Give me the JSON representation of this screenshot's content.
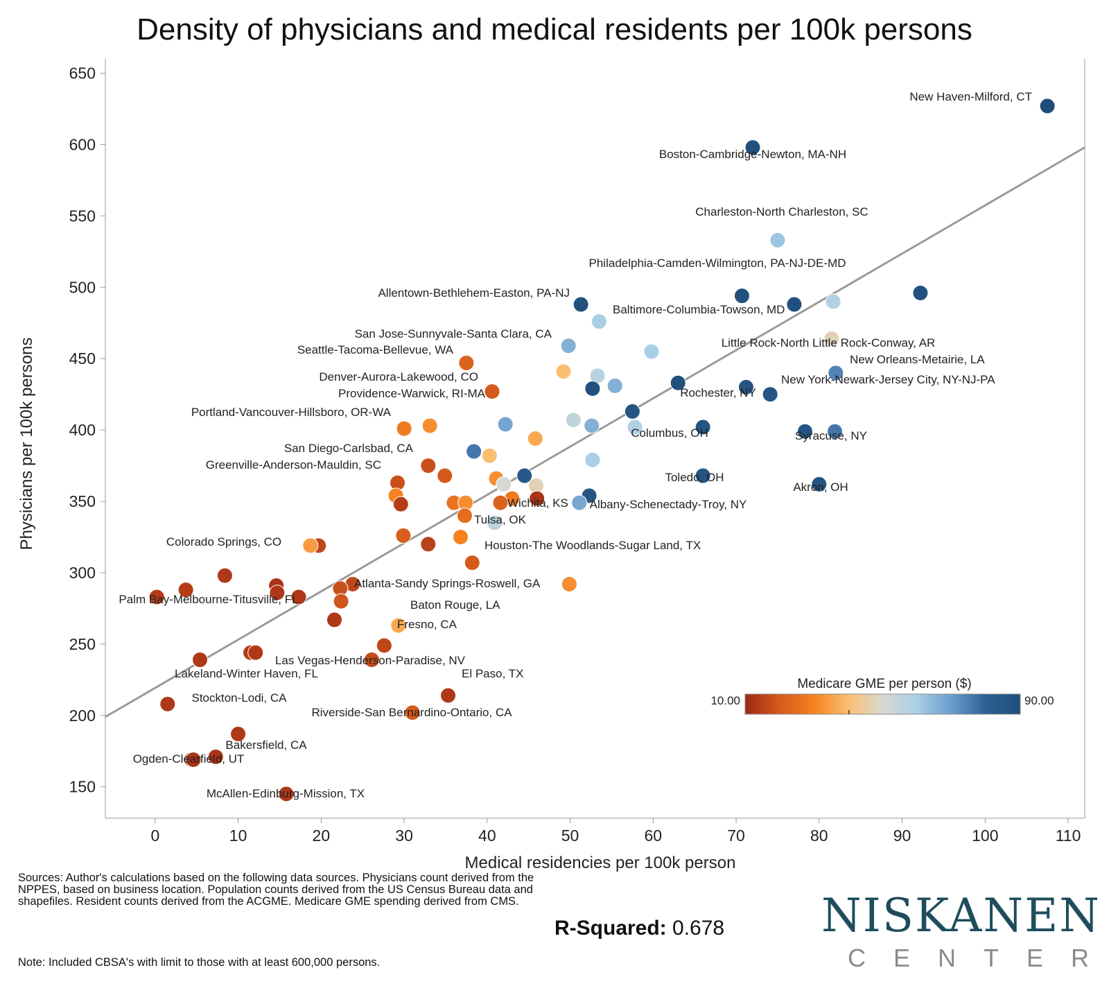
{
  "chart_data": {
    "type": "scatter",
    "title": "Density of physicians and medical residents per 100k persons",
    "xlabel": "Medical residencies per 100k person",
    "ylabel": "Physicians per 100k persons",
    "xlim": [
      -6,
      112
    ],
    "ylim": [
      128,
      660
    ],
    "x_ticks": [
      0,
      10,
      20,
      30,
      40,
      50,
      60,
      70,
      80,
      90,
      100,
      110
    ],
    "y_ticks": [
      150,
      200,
      250,
      300,
      350,
      400,
      450,
      500,
      550,
      600,
      650
    ],
    "trendline": {
      "x0": -6,
      "y0": 199,
      "x1": 112,
      "y1": 598
    },
    "color_legend": {
      "title": "Medicare GME per person ($)",
      "min_label": "10.00",
      "max_label": "90.00",
      "min": 10,
      "max": 90,
      "colors": [
        "#9e2a16",
        "#d45a1c",
        "#f5821f",
        "#fbbf72",
        "#d8d8d2",
        "#a9cfe6",
        "#6b9ccc",
        "#2d5f93",
        "#1f4e79"
      ]
    },
    "r_squared_label": "R-Squared:",
    "r_squared": "0.678",
    "points": [
      {
        "x": 107.5,
        "y": 627,
        "gme": 90,
        "label": "New Haven-Milford, CT"
      },
      {
        "x": 72,
        "y": 598,
        "gme": 88
      },
      {
        "x": 75,
        "y": 533,
        "gme": 62,
        "label": "Charleston-North Charleston, SC"
      },
      {
        "x": 92.2,
        "y": 496,
        "gme": 88
      },
      {
        "x": 70.7,
        "y": 494,
        "gme": 88
      },
      {
        "x": 77,
        "y": 488,
        "gme": 88
      },
      {
        "x": 81.7,
        "y": 490,
        "gme": 58
      },
      {
        "x": 51.3,
        "y": 488,
        "gme": 88,
        "label": "Allentown-Bethlehem-Easton, PA-NJ"
      },
      {
        "x": 53.5,
        "y": 476,
        "gme": 60,
        "label": "Baltimore-Columbia-Towson, MD"
      },
      {
        "x": 81.5,
        "y": 464,
        "gme": 47
      },
      {
        "x": 49.8,
        "y": 459,
        "gme": 66,
        "label": "San Jose-Sunnyvale-Santa Clara, CA"
      },
      {
        "x": 59.8,
        "y": 455,
        "gme": 60
      },
      {
        "x": 37.5,
        "y": 447,
        "gme": 22,
        "label": "Seattle-Tacoma-Bellevue, WA"
      },
      {
        "x": 82,
        "y": 440,
        "gme": 74,
        "label": "New Orleans-Metairie, LA"
      },
      {
        "x": 49.2,
        "y": 441,
        "gme": 40
      },
      {
        "x": 53.3,
        "y": 438,
        "gme": 57
      },
      {
        "x": 52.7,
        "y": 429,
        "gme": 88
      },
      {
        "x": 55.4,
        "y": 431,
        "gme": 66
      },
      {
        "x": 63,
        "y": 433,
        "gme": 88
      },
      {
        "x": 71.2,
        "y": 430,
        "gme": 86
      },
      {
        "x": 74.1,
        "y": 425,
        "gme": 86,
        "label": "New York-Newark-Jersey City, NY-NJ-PA"
      },
      {
        "x": 40.6,
        "y": 427,
        "gme": 20,
        "label": "Denver-Aurora-Lakewood, CO"
      },
      {
        "x": 57.5,
        "y": 413,
        "gme": 86
      },
      {
        "x": 50.4,
        "y": 407,
        "gme": 55
      },
      {
        "x": 42.2,
        "y": 404,
        "gme": 68
      },
      {
        "x": 52.6,
        "y": 403,
        "gme": 66
      },
      {
        "x": 57.8,
        "y": 402,
        "gme": 58
      },
      {
        "x": 66,
        "y": 402,
        "gme": 86
      },
      {
        "x": 78.3,
        "y": 399,
        "gme": 86
      },
      {
        "x": 81.9,
        "y": 399,
        "gme": 76
      },
      {
        "x": 30,
        "y": 401,
        "gme": 28,
        "label": "Portland-Vancouver-Hillsboro, OR-WA"
      },
      {
        "x": 33.1,
        "y": 403,
        "gme": 32
      },
      {
        "x": 45.8,
        "y": 394,
        "gme": 36
      },
      {
        "x": 38.4,
        "y": 385,
        "gme": 76
      },
      {
        "x": 40.3,
        "y": 382,
        "gme": 40
      },
      {
        "x": 52.7,
        "y": 379,
        "gme": 60
      },
      {
        "x": 32.9,
        "y": 375,
        "gme": 18,
        "label": "San Diego-Carlsbad, CA"
      },
      {
        "x": 34.9,
        "y": 368,
        "gme": 20
      },
      {
        "x": 44.5,
        "y": 368,
        "gme": 84
      },
      {
        "x": 66,
        "y": 368,
        "gme": 86
      },
      {
        "x": 41.1,
        "y": 366,
        "gme": 32
      },
      {
        "x": 42,
        "y": 362,
        "gme": 50
      },
      {
        "x": 45.9,
        "y": 361,
        "gme": 47
      },
      {
        "x": 29.2,
        "y": 363,
        "gme": 18,
        "label": "Greenville-Anderson-Mauldin, SC"
      },
      {
        "x": 80,
        "y": 362,
        "gme": 86
      },
      {
        "x": 29,
        "y": 354,
        "gme": 30
      },
      {
        "x": 52.3,
        "y": 354,
        "gme": 86
      },
      {
        "x": 46,
        "y": 352,
        "gme": 12
      },
      {
        "x": 43,
        "y": 352,
        "gme": 28
      },
      {
        "x": 36,
        "y": 349,
        "gme": 26
      },
      {
        "x": 37.4,
        "y": 349,
        "gme": 32
      },
      {
        "x": 41.6,
        "y": 349,
        "gme": 22
      },
      {
        "x": 51.1,
        "y": 349,
        "gme": 68
      },
      {
        "x": 29.6,
        "y": 348,
        "gme": 14
      },
      {
        "x": 37.3,
        "y": 340,
        "gme": 25
      },
      {
        "x": 40.9,
        "y": 335,
        "gme": 56,
        "label": "Wichita, KS"
      },
      {
        "x": 29.9,
        "y": 326,
        "gme": 21
      },
      {
        "x": 36.8,
        "y": 325,
        "gme": 30,
        "label": "Tulsa, OK"
      },
      {
        "x": 32.9,
        "y": 320,
        "gme": 15
      },
      {
        "x": 19.7,
        "y": 319,
        "gme": 16
      },
      {
        "x": 18.7,
        "y": 319,
        "gme": 34
      },
      {
        "x": 38.2,
        "y": 307,
        "gme": 20,
        "label": "Houston-The Woodlands-Sugar Land, TX"
      },
      {
        "x": 8.4,
        "y": 298,
        "gme": 13
      },
      {
        "x": 49.9,
        "y": 292,
        "gme": 32
      },
      {
        "x": 23.8,
        "y": 292,
        "gme": 16
      },
      {
        "x": 14.6,
        "y": 291,
        "gme": 12
      },
      {
        "x": 22.3,
        "y": 289,
        "gme": 18
      },
      {
        "x": 3.7,
        "y": 288,
        "gme": 14
      },
      {
        "x": 14.7,
        "y": 286,
        "gme": 13
      },
      {
        "x": 0.2,
        "y": 283,
        "gme": 14
      },
      {
        "x": 17.3,
        "y": 283,
        "gme": 13
      },
      {
        "x": 22.4,
        "y": 280,
        "gme": 19,
        "label": "Atlanta-Sandy Springs-Roswell, GA"
      },
      {
        "x": 21.6,
        "y": 267,
        "gme": 13
      },
      {
        "x": 29.3,
        "y": 263,
        "gme": 36,
        "label": "Baton Rouge, LA"
      },
      {
        "x": 27.6,
        "y": 249,
        "gme": 16,
        "label": "Fresno, CA"
      },
      {
        "x": 11.5,
        "y": 244,
        "gme": 14
      },
      {
        "x": 12.1,
        "y": 244,
        "gme": 13
      },
      {
        "x": 5.4,
        "y": 239,
        "gme": 13
      },
      {
        "x": 26.1,
        "y": 239,
        "gme": 17
      },
      {
        "x": 35.3,
        "y": 214,
        "gme": 13,
        "label": "El Paso, TX"
      },
      {
        "x": 1.5,
        "y": 208,
        "gme": 13,
        "label": "Lakeland-Winter Haven, FL"
      },
      {
        "x": 31,
        "y": 202,
        "gme": 20
      },
      {
        "x": 10,
        "y": 187,
        "gme": 13
      },
      {
        "x": 7.3,
        "y": 171,
        "gme": 12
      },
      {
        "x": 4.4,
        "y": 169,
        "gme": 12
      },
      {
        "x": 4.6,
        "y": 169,
        "gme": 12
      },
      {
        "x": 15.8,
        "y": 145,
        "gme": 13
      }
    ],
    "annotations": [
      "Boston-Cambridge-Newton, MA-NH",
      "Philadelphia-Camden-Wilmington, PA-NJ-DE-MD",
      "Little Rock-North Little Rock-Conway, AR",
      "Rochester, NY",
      "Providence-Warwick, RI-MA",
      "Columbus, OH",
      "Syracuse, NY",
      "Toledo, OH",
      "Akron, OH",
      "Albany-Schenectady-Troy, NY",
      "Colorado Springs, CO",
      "Palm Bay-Melbourne-Titusville, FL",
      "Las Vegas-Henderson-Paradise, NV",
      "Stockton-Lodi, CA",
      "Riverside-San Bernardino-Ontario, CA",
      "Bakersfield, CA",
      "Ogden-Clearfield, UT",
      "McAllen-Edinburg-Mission, TX"
    ]
  },
  "footer": {
    "sources": "Sources: Author's calculations based on the following data sources. Physicians count derived from the NPPES, based on business location. Population counts derived from the US Census Bureau data and shapefiles. Resident counts derived from the ACGME. Medicare GME spending derived from CMS.",
    "note": "Note: Included CBSA's with limit to those with at least 600,000 persons."
  },
  "logo": {
    "name": "NISKANEN",
    "sub": "CENTER"
  }
}
